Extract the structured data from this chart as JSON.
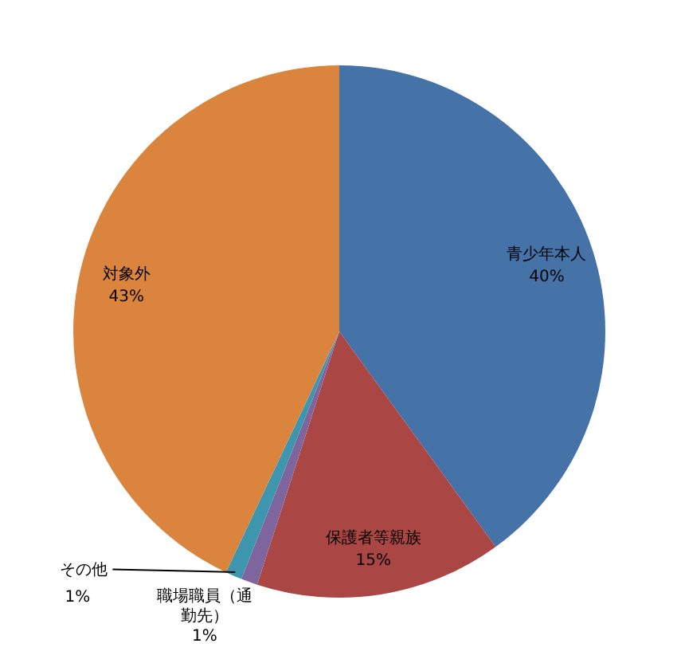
{
  "chart_data": {
    "type": "pie",
    "categories": [
      "青少年本人",
      "保護者等親族",
      "職場職員（通勤先）",
      "その他",
      "対象外"
    ],
    "values": [
      40,
      15,
      1,
      1,
      43
    ],
    "colors": [
      "#4572a7",
      "#aa4643",
      "#7f659e",
      "#3d96ae",
      "#db843d"
    ],
    "value_labels": [
      "40%",
      "15%",
      "1%",
      "1%",
      "43%"
    ]
  }
}
